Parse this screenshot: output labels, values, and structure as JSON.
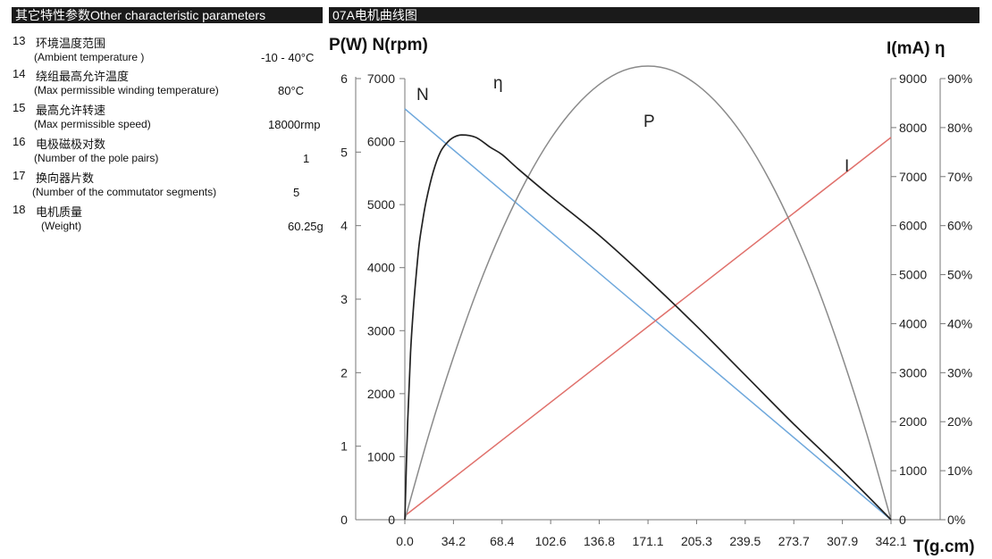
{
  "header": {
    "left_title": "其它特性参数Other characteristic parameters",
    "right_title": "07A电机曲线图"
  },
  "params": [
    {
      "num": "13",
      "zh": "环境温度范围",
      "en": "(Ambient  temperature )",
      "value": "-10 - 40°C"
    },
    {
      "num": "14",
      "zh": "绕组最高允许温度",
      "en": "(Max permissible winding temperature)",
      "value": "80°C"
    },
    {
      "num": "15",
      "zh": "最高允许转速",
      "en": "(Max permissible speed)",
      "value": "18000rmp"
    },
    {
      "num": "16",
      "zh": "电极磁极对数",
      "en": "(Number of  the pole pairs)",
      "value": "1"
    },
    {
      "num": "17",
      "zh": "换向器片数",
      "en": "(Number of the  commutator  segments)",
      "value": "5"
    },
    {
      "num": "18",
      "zh": "电机质量",
      "en": "(Weight)",
      "value": "60.25g"
    }
  ],
  "chart_data": {
    "type": "line",
    "title": "07A电机曲线图",
    "xlabel": "T(g.cm)",
    "ylabel_left": "P(W) N(rpm)",
    "ylabel_right": "I(mA)   η",
    "x_ticks": [
      "0.0",
      "34.2",
      "68.4",
      "102.6",
      "136.8",
      "171.1",
      "205.3",
      "239.5",
      "273.7",
      "307.9",
      "342.1"
    ],
    "xlim": [
      0,
      342.1
    ],
    "axes": {
      "P": {
        "label": "P(W)",
        "range": [
          0,
          6
        ],
        "ticks": [
          "0",
          "1",
          "2",
          "3",
          "4",
          "5",
          "6"
        ]
      },
      "N": {
        "label": "N(rpm)",
        "range": [
          0,
          7000
        ],
        "ticks": [
          "0",
          "1000",
          "2000",
          "3000",
          "4000",
          "5000",
          "6000",
          "7000"
        ]
      },
      "I": {
        "label": "I(mA)",
        "range": [
          0,
          9000
        ],
        "ticks": [
          "0",
          "1000",
          "2000",
          "3000",
          "4000",
          "5000",
          "6000",
          "7000",
          "8000",
          "9000"
        ]
      },
      "eta": {
        "label": "η",
        "range": [
          0,
          90
        ],
        "ticks": [
          "0%",
          "10%",
          "20%",
          "30%",
          "40%",
          "50%",
          "60%",
          "70%",
          "80%",
          "90%"
        ]
      }
    },
    "series": [
      {
        "name": "N",
        "label": "N",
        "axis": "N",
        "color": "#6fa8dc",
        "x": [
          0,
          342.1
        ],
        "y": [
          6520,
          0
        ]
      },
      {
        "name": "I",
        "label": "I",
        "axis": "I",
        "color": "#e0716c",
        "x": [
          0,
          342.1
        ],
        "y": [
          80,
          7800
        ]
      },
      {
        "name": "P",
        "label": "P",
        "axis": "P",
        "color": "#8a8a8a",
        "x": [
          0,
          17.1,
          34.2,
          51.3,
          68.4,
          85.5,
          102.6,
          119.7,
          136.8,
          153.9,
          171.1,
          188.2,
          205.3,
          222.4,
          239.5,
          256.6,
          273.7,
          290.8,
          307.9,
          325.0,
          342.1
        ],
        "y": [
          0,
          1.17,
          2.21,
          3.14,
          3.94,
          4.62,
          5.18,
          5.61,
          5.92,
          6.11,
          6.17,
          6.11,
          5.92,
          5.61,
          5.18,
          4.62,
          3.94,
          3.14,
          2.21,
          1.17,
          0
        ]
      },
      {
        "name": "eta",
        "label": "η",
        "axis": "eta",
        "color": "#222222",
        "x": [
          0,
          2,
          4,
          6,
          8,
          10,
          12,
          15,
          20,
          25,
          30,
          34.2,
          40,
          50,
          60,
          68.4,
          80,
          102.6,
          136.8,
          171.1,
          205.3,
          239.5,
          273.7,
          307.9,
          342.1
        ],
        "y": [
          0,
          20,
          34,
          43,
          50,
          56,
          60,
          65,
          71,
          75,
          77,
          78,
          78.5,
          78,
          76,
          74.5,
          71.5,
          66,
          58,
          49,
          39.5,
          29.5,
          19.5,
          10,
          0
        ]
      }
    ]
  }
}
